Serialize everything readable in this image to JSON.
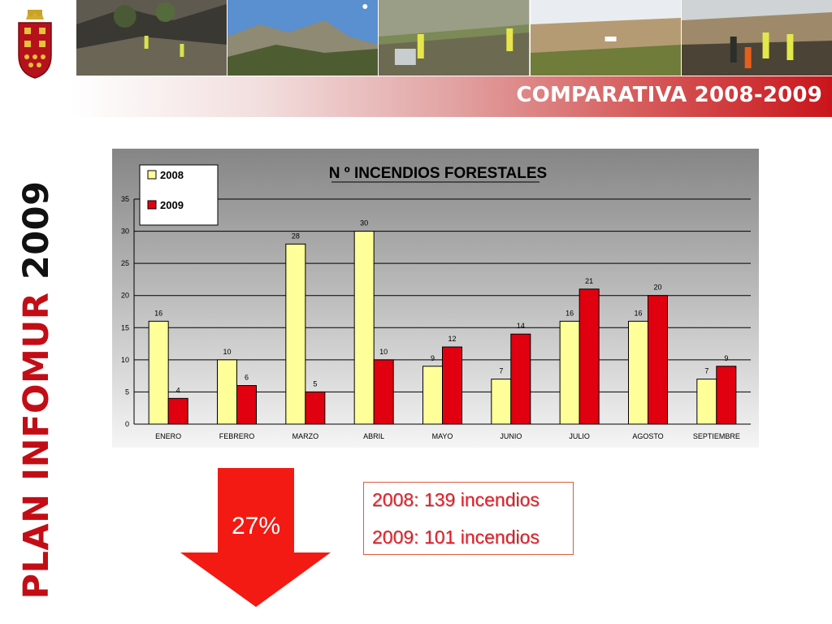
{
  "header": {
    "banner_title": "COMPARATIVA 2008-2009",
    "photo_strip": [
      "wildfire-scene-1",
      "wildfire-scene-2",
      "wildfire-scene-3",
      "wildfire-scene-4",
      "wildfire-scene-5"
    ]
  },
  "side_title": {
    "main": "PLAN INFOMUR",
    "year": "2009"
  },
  "chart_data": {
    "type": "bar",
    "title": "N º INCENDIOS FORESTALES",
    "categories": [
      "ENERO",
      "FEBRERO",
      "MARZO",
      "ABRIL",
      "MAYO",
      "JUNIO",
      "JULIO",
      "AGOSTO",
      "SEPTIEMBRE"
    ],
    "series": [
      {
        "name": "2008",
        "values": [
          16,
          10,
          28,
          30,
          9,
          7,
          16,
          16,
          7
        ],
        "color": "#ffff99"
      },
      {
        "name": "2009",
        "values": [
          4,
          6,
          5,
          10,
          12,
          14,
          21,
          20,
          9
        ],
        "color": "#e0000f"
      }
    ],
    "ylim": [
      0,
      35
    ],
    "yticks": [
      0,
      5,
      10,
      15,
      20,
      25,
      30,
      35
    ],
    "grid": true,
    "legend": "top-left",
    "data_labels": true,
    "colors": {
      "plot_background_top": "#858585",
      "plot_background_bottom": "#f5f5f5"
    }
  },
  "summary": {
    "reduction_label": "27%",
    "arrow_color": "#f21a12",
    "total_2008": "2008: 139 incendios",
    "total_2009": "2009: 101 incendios",
    "text_color": "#e0202a"
  }
}
